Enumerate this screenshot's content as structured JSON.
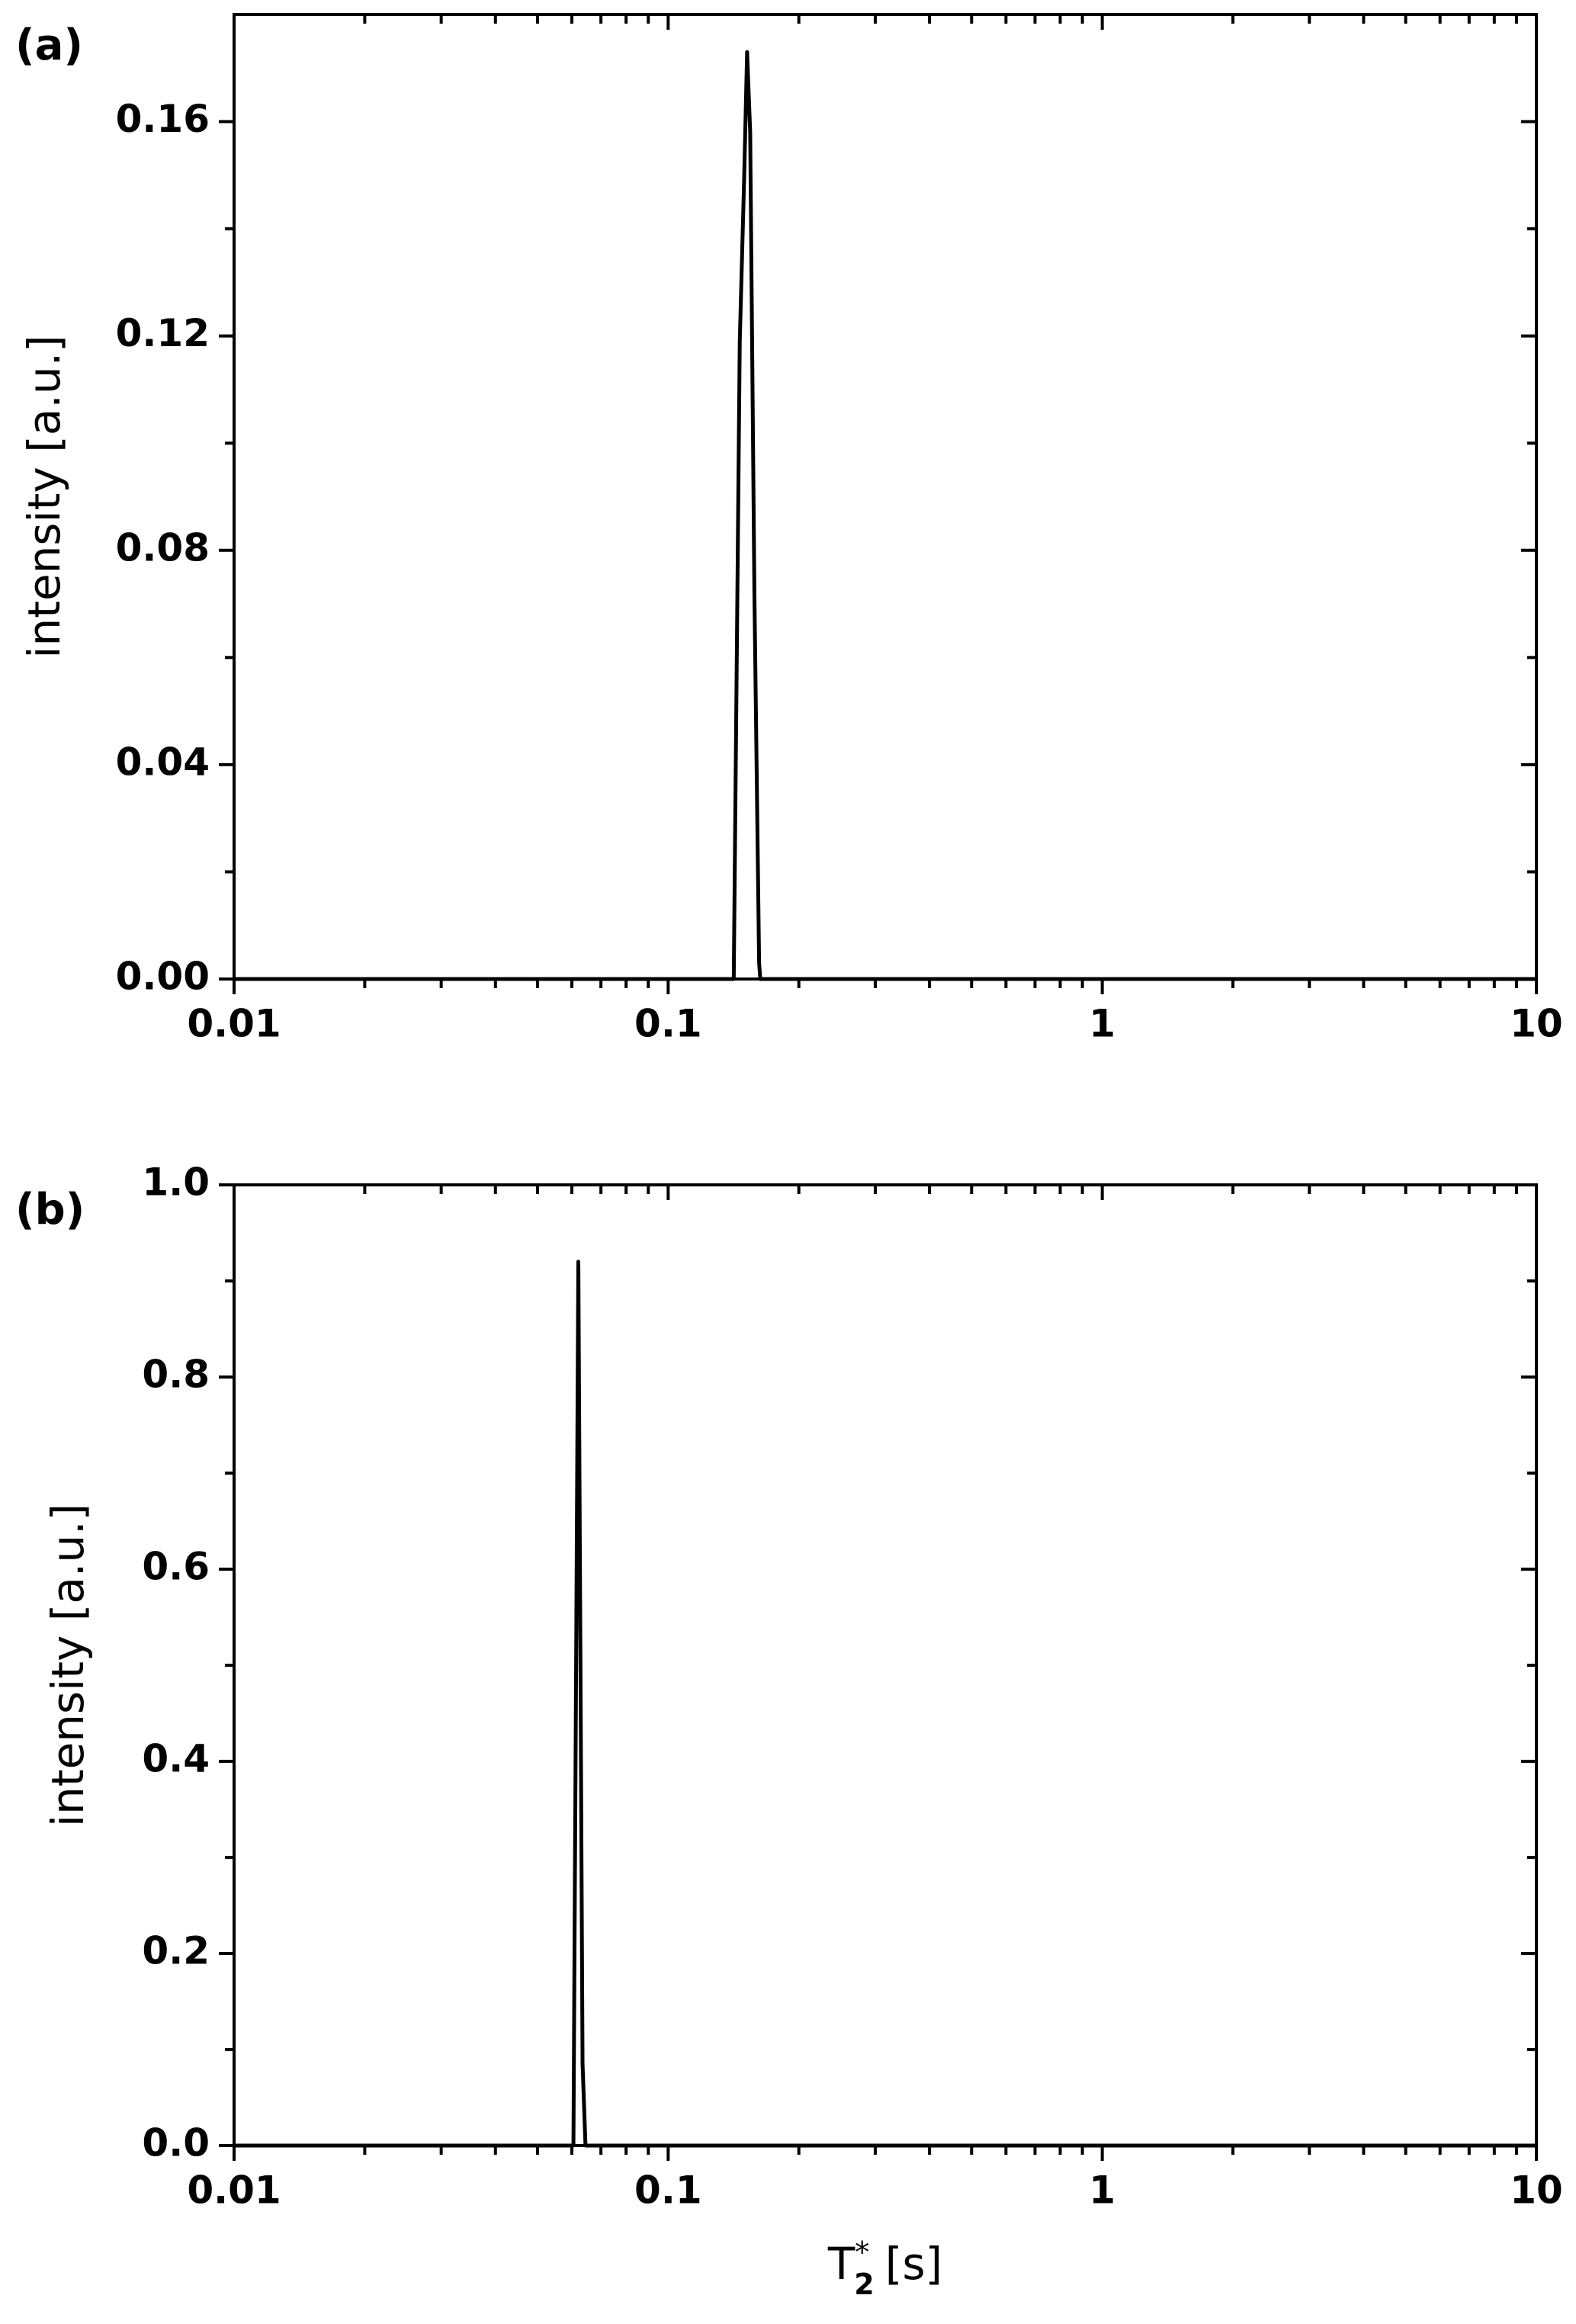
{
  "chart_data": [
    {
      "type": "line",
      "panel_label": "(a)",
      "y_label": "intensity [a.u.]",
      "x_scale": "log",
      "x": [
        0.01,
        0.1416,
        0.1462,
        0.1497,
        0.152,
        0.1545,
        0.158,
        0.162,
        0.163,
        10
      ],
      "series": [
        {
          "color": "#000000",
          "values": [
            0,
            0,
            0.119,
            0.15,
            0.173,
            0.158,
            0.072,
            0.003,
            0,
            0
          ]
        }
      ],
      "xlim": [
        0.01,
        10
      ],
      "xticks": [
        0.01,
        0.1,
        1,
        10
      ],
      "ylim": [
        0,
        0.18
      ],
      "yticks": [
        {
          "value": 0,
          "label": "0.00"
        },
        0.04,
        0.08,
        0.12,
        0.16
      ]
    },
    {
      "type": "line",
      "panel_label": "(b)",
      "y_label": "intensity [a.u.]",
      "x_scale": "log",
      "x_label": {
        "symbol": "T",
        "subscript": "2",
        "superscript": "*",
        "unit": "[s]"
      },
      "x": [
        0.01,
        0.0605,
        0.0621,
        0.0635,
        0.0645,
        10
      ],
      "series": [
        {
          "color": "#000000",
          "values": [
            0,
            0,
            0.92,
            0.085,
            0,
            0
          ]
        }
      ],
      "xlim": [
        0.01,
        10
      ],
      "xticks": [
        0.01,
        0.1,
        1,
        10
      ],
      "ylim": [
        0,
        1
      ],
      "yticks": [
        {
          "value": 0,
          "label": "0.0"
        },
        0.2,
        0.4,
        0.6,
        0.8,
        {
          "value": 1,
          "label": "1.0"
        }
      ]
    }
  ]
}
